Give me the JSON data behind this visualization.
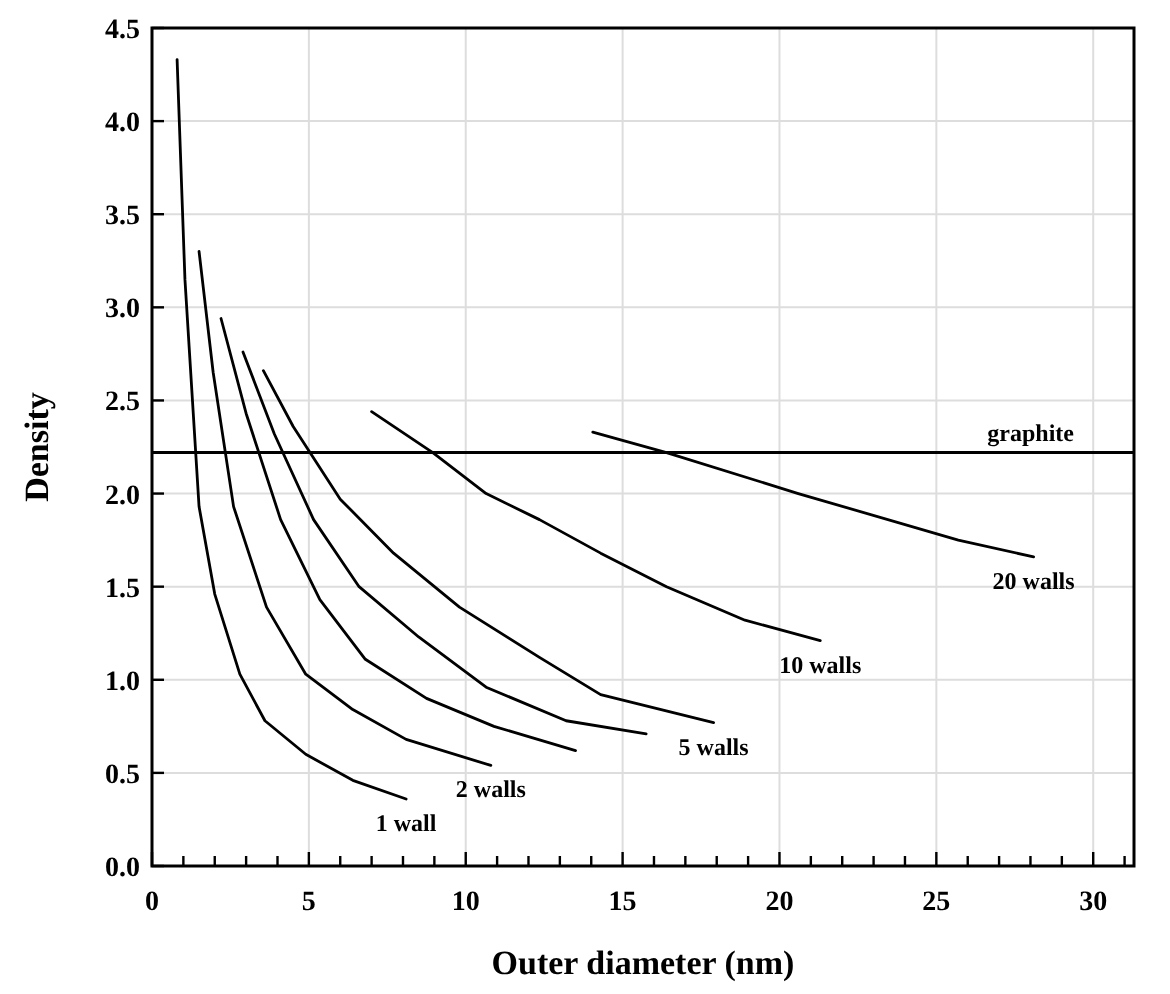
{
  "chart_data": {
    "type": "line",
    "xlabel": "Outer diameter (nm)",
    "ylabel": "Density",
    "xlim": [
      0,
      31.3
    ],
    "ylim": [
      0,
      4.5
    ],
    "xticks": [
      0,
      {
        "value": 1,
        "label": null
      },
      {
        "value": 2,
        "label": null
      },
      {
        "value": 3,
        "label": null
      },
      {
        "value": 4,
        "label": null
      },
      5,
      {
        "value": 6,
        "label": null
      },
      {
        "value": 7,
        "label": null
      },
      {
        "value": 8,
        "label": null
      },
      {
        "value": 9,
        "label": null
      },
      10,
      {
        "value": 11,
        "label": null
      },
      {
        "value": 12,
        "label": null
      },
      {
        "value": 13,
        "label": null
      },
      {
        "value": 14,
        "label": null
      },
      15,
      {
        "value": 16,
        "label": null
      },
      {
        "value": 17,
        "label": null
      },
      {
        "value": 18,
        "label": null
      },
      {
        "value": 19,
        "label": null
      },
      20,
      {
        "value": 21,
        "label": null
      },
      {
        "value": 22,
        "label": null
      },
      {
        "value": 23,
        "label": null
      },
      {
        "value": 24,
        "label": null
      },
      25,
      {
        "value": 26,
        "label": null
      },
      {
        "value": 27,
        "label": null
      },
      {
        "value": 28,
        "label": null
      },
      {
        "value": 29,
        "label": null
      },
      30,
      {
        "value": 31,
        "label": null
      }
    ],
    "yticks": [
      {
        "value": 0,
        "label": "0.0"
      },
      {
        "value": 0.5,
        "label": "0.5"
      },
      {
        "value": 1,
        "label": "1.0"
      },
      {
        "value": 1.5,
        "label": "1.5"
      },
      {
        "value": 2,
        "label": "2.0"
      },
      {
        "value": 2.5,
        "label": "2.5"
      },
      {
        "value": 3,
        "label": "3.0"
      },
      {
        "value": 3.5,
        "label": "3.5"
      },
      {
        "value": 4,
        "label": "4.0"
      },
      {
        "value": 4.5,
        "label": "4.5"
      }
    ],
    "grid": true,
    "marker": "none",
    "line_style": "solid",
    "series": [
      {
        "name": "1 wall",
        "color": "#000000",
        "x": [
          0.8,
          1.05,
          1.5,
          2.0,
          2.8,
          3.6,
          4.9,
          6.4,
          8.1
        ],
        "values": [
          4.33,
          3.15,
          1.93,
          1.46,
          1.03,
          0.78,
          0.6,
          0.46,
          0.36
        ]
      },
      {
        "name": "2 walls",
        "color": "#000000",
        "x": [
          1.5,
          1.95,
          2.6,
          3.65,
          4.9,
          6.4,
          8.1,
          10.8
        ],
        "values": [
          3.3,
          2.65,
          1.93,
          1.39,
          1.03,
          0.84,
          0.68,
          0.54
        ]
      },
      {
        "color": "#000000",
        "x": [
          2.2,
          3.0,
          4.1,
          5.35,
          6.8,
          8.75,
          10.9,
          13.5
        ],
        "values": [
          2.94,
          2.43,
          1.86,
          1.43,
          1.11,
          0.9,
          0.75,
          0.62
        ]
      },
      {
        "color": "#000000",
        "x": [
          2.9,
          3.9,
          5.15,
          6.6,
          8.5,
          10.65,
          13.2,
          15.75
        ],
        "values": [
          2.76,
          2.32,
          1.86,
          1.5,
          1.23,
          0.96,
          0.78,
          0.71
        ]
      },
      {
        "name": "5 walls",
        "color": "#000000",
        "x": [
          3.55,
          4.5,
          6.0,
          7.7,
          9.8,
          12.35,
          14.3,
          17.9
        ],
        "values": [
          2.66,
          2.36,
          1.97,
          1.68,
          1.39,
          1.12,
          0.92,
          0.77
        ]
      },
      {
        "name": "10 walls",
        "color": "#000000",
        "x": [
          7.0,
          8.95,
          10.65,
          12.35,
          14.3,
          16.4,
          18.9,
          21.3
        ],
        "values": [
          2.44,
          2.22,
          2.0,
          1.86,
          1.68,
          1.5,
          1.32,
          1.21
        ]
      },
      {
        "name": "20 walls",
        "color": "#000000",
        "x": [
          14.05,
          16.4,
          20.6,
          25.7,
          28.1
        ],
        "values": [
          2.33,
          2.22,
          2.0,
          1.75,
          1.66
        ]
      }
    ],
    "ref_lines": [
      {
        "axis": "y",
        "value": 2.22,
        "label": "graphite",
        "color": "#000000",
        "line_style": "solid"
      }
    ]
  }
}
